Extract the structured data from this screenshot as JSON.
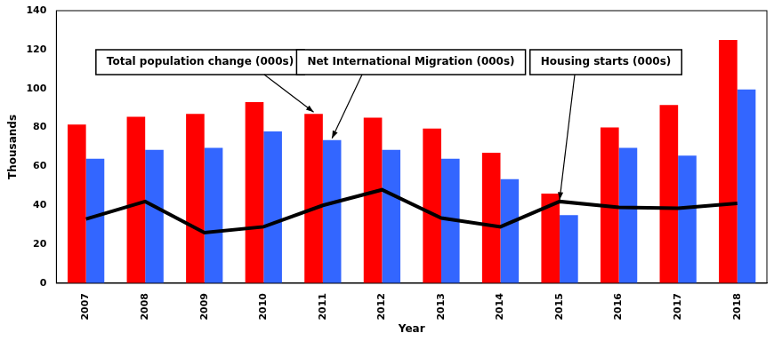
{
  "chart_data": {
    "type": "bar",
    "categories": [
      "2007",
      "2008",
      "2009",
      "2010",
      "2011",
      "2012",
      "2013",
      "2014",
      "2015",
      "2016",
      "2017",
      "2018"
    ],
    "x_label": "Year",
    "y_label": "Thousands",
    "ylim": [
      0,
      140
    ],
    "yticks": [
      0,
      20,
      40,
      60,
      80,
      100,
      120,
      140
    ],
    "grid": false,
    "series": [
      {
        "name": "Total population change (000s)",
        "color": "#ff0000",
        "values": [
          81.5,
          85.5,
          87,
          93,
          87,
          85,
          79.5,
          67,
          46,
          80,
          91.5,
          125
        ]
      },
      {
        "name": "Net International Migration (000s)",
        "color": "#3366ff",
        "values": [
          64,
          68.5,
          69.5,
          78,
          73.5,
          68.5,
          64,
          53.5,
          35,
          69.5,
          65.5,
          99.5
        ]
      },
      {
        "name": "Housing starts (000s)",
        "type": "line",
        "color": "#000000",
        "values": [
          33,
          42,
          26,
          29,
          40,
          48,
          33.5,
          29,
          42,
          39,
          38.5,
          41
        ]
      }
    ]
  }
}
